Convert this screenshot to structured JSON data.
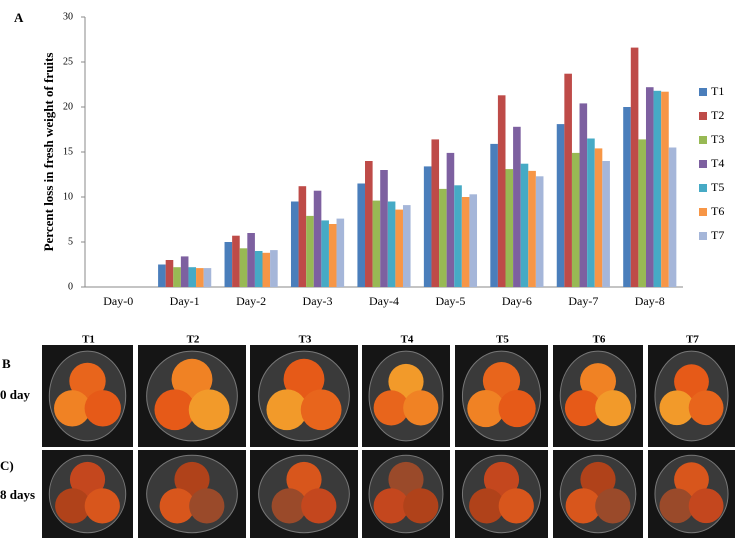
{
  "panel_a": "A",
  "chart_data": {
    "type": "bar",
    "y_label": "Percent loss in fresh weight of fruits",
    "categories": [
      "Day-0",
      "Day-1",
      "Day-2",
      "Day-3",
      "Day-4",
      "Day-5",
      "Day-6",
      "Day-7",
      "Day-8"
    ],
    "series": [
      {
        "name": "T1",
        "color": "#4a7ebb",
        "values": [
          0,
          2.5,
          5.0,
          9.5,
          11.5,
          13.4,
          15.9,
          18.1,
          20.0
        ]
      },
      {
        "name": "T2",
        "color": "#be4b48",
        "values": [
          0,
          3.0,
          5.7,
          11.2,
          14.0,
          16.4,
          21.3,
          23.7,
          26.6
        ]
      },
      {
        "name": "T3",
        "color": "#98b954",
        "values": [
          0,
          2.2,
          4.3,
          7.9,
          9.6,
          10.9,
          13.1,
          14.9,
          16.4
        ]
      },
      {
        "name": "T4",
        "color": "#7d60a0",
        "values": [
          0,
          3.4,
          6.0,
          10.7,
          13.0,
          14.9,
          17.8,
          20.4,
          22.2
        ]
      },
      {
        "name": "T5",
        "color": "#46aac5",
        "values": [
          0,
          2.2,
          4.0,
          7.4,
          9.5,
          11.3,
          13.7,
          16.5,
          21.8
        ]
      },
      {
        "name": "T6",
        "color": "#f79646",
        "values": [
          0,
          2.1,
          3.8,
          7.0,
          8.6,
          10.0,
          12.9,
          15.4,
          21.7
        ]
      },
      {
        "name": "T7",
        "color": "#a5b6d9",
        "values": [
          0,
          2.1,
          4.1,
          7.6,
          9.1,
          10.3,
          12.3,
          14.0,
          15.5
        ]
      }
    ],
    "ylim": [
      0,
      30
    ],
    "yticks": [
      0,
      5,
      10,
      15,
      20,
      25,
      30
    ],
    "grid": false,
    "legend": "right"
  },
  "photo_panel": {
    "label_b": "B",
    "label_c": "C)",
    "column_labels": [
      "T1",
      "T2",
      "T3",
      "T4",
      "T5",
      "T6",
      "T7"
    ],
    "row_labels": [
      "0 day",
      "8 days"
    ]
  }
}
